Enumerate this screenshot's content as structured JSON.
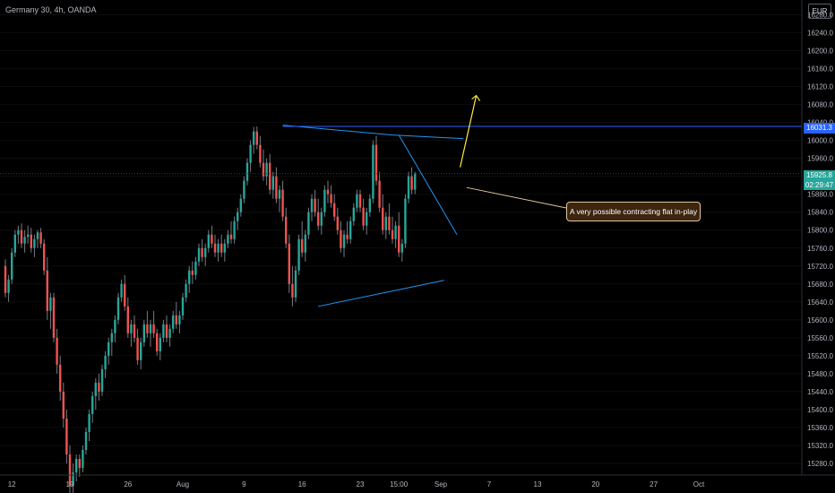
{
  "header": {
    "title": "Germany 30, 4h, OANDA",
    "currency": "EUR"
  },
  "annotation": {
    "text": "A very possible contracting flat in-play"
  },
  "price_tags": {
    "level": "16031.3",
    "last": "15925.8",
    "countdown": "02:29:47"
  },
  "colors": {
    "up": "#26a69a",
    "down": "#ef5350",
    "wick": "#787b86",
    "trendline": "#2196f3",
    "arrow": "#ffeb3b",
    "background": "#000000"
  },
  "chart_data": {
    "type": "candlestick",
    "title": "",
    "xlabel": "",
    "ylabel": "",
    "ylim": [
      15260,
      16290
    ],
    "y_ticks": [
      16280.0,
      16240.0,
      16200.0,
      16160.0,
      16120.0,
      16080.0,
      16040.0,
      16000.0,
      15960.0,
      15920.0,
      15880.0,
      15840.0,
      15800.0,
      15760.0,
      15720.0,
      15680.0,
      15640.0,
      15600.0,
      15560.0,
      15520.0,
      15480.0,
      15440.0,
      15400.0,
      15360.0,
      15320.0,
      15280.0
    ],
    "x_ticks": [
      {
        "label": "12",
        "index": 2
      },
      {
        "label": "19",
        "index": 20
      },
      {
        "label": "26",
        "index": 38
      },
      {
        "label": "Aug",
        "index": 55
      },
      {
        "label": "9",
        "index": 74
      },
      {
        "label": "16",
        "index": 92
      },
      {
        "label": "23",
        "index": 110
      },
      {
        "label": "15:00",
        "index": 122
      },
      {
        "label": "Sep",
        "index": 135
      },
      {
        "label": "7",
        "index": 150
      },
      {
        "label": "13",
        "index": 165
      },
      {
        "label": "20",
        "index": 183
      },
      {
        "label": "27",
        "index": 201
      },
      {
        "label": "Oct",
        "index": 215
      }
    ],
    "candles": [
      [
        15720,
        15735,
        15650,
        15660
      ],
      [
        15660,
        15700,
        15640,
        15690
      ],
      [
        15690,
        15760,
        15680,
        15750
      ],
      [
        15750,
        15800,
        15740,
        15790
      ],
      [
        15790,
        15810,
        15770,
        15800
      ],
      [
        15800,
        15815,
        15760,
        15770
      ],
      [
        15770,
        15800,
        15750,
        15785
      ],
      [
        15785,
        15810,
        15770,
        15790
      ],
      [
        15790,
        15805,
        15750,
        15760
      ],
      [
        15760,
        15790,
        15740,
        15780
      ],
      [
        15780,
        15800,
        15760,
        15795
      ],
      [
        15795,
        15805,
        15760,
        15770
      ],
      [
        15770,
        15780,
        15700,
        15710
      ],
      [
        15710,
        15740,
        15600,
        15620
      ],
      [
        15620,
        15660,
        15580,
        15650
      ],
      [
        15650,
        15660,
        15550,
        15560
      ],
      [
        15560,
        15580,
        15480,
        15500
      ],
      [
        15500,
        15520,
        15420,
        15440
      ],
      [
        15440,
        15460,
        15360,
        15380
      ],
      [
        15380,
        15400,
        15280,
        15300
      ],
      [
        15300,
        15320,
        15210,
        15230
      ],
      [
        15230,
        15280,
        15200,
        15260
      ],
      [
        15260,
        15300,
        15240,
        15290
      ],
      [
        15290,
        15300,
        15250,
        15270
      ],
      [
        15270,
        15320,
        15260,
        15310
      ],
      [
        15310,
        15360,
        15300,
        15350
      ],
      [
        15350,
        15400,
        15330,
        15390
      ],
      [
        15390,
        15440,
        15370,
        15430
      ],
      [
        15430,
        15470,
        15400,
        15460
      ],
      [
        15460,
        15480,
        15420,
        15440
      ],
      [
        15440,
        15500,
        15430,
        15490
      ],
      [
        15490,
        15530,
        15470,
        15520
      ],
      [
        15520,
        15560,
        15500,
        15550
      ],
      [
        15550,
        15580,
        15520,
        15570
      ],
      [
        15570,
        15610,
        15550,
        15600
      ],
      [
        15600,
        15660,
        15590,
        15650
      ],
      [
        15650,
        15690,
        15640,
        15680
      ],
      [
        15680,
        15700,
        15620,
        15630
      ],
      [
        15630,
        15650,
        15560,
        15570
      ],
      [
        15570,
        15600,
        15540,
        15590
      ],
      [
        15590,
        15610,
        15550,
        15560
      ],
      [
        15560,
        15580,
        15500,
        15510
      ],
      [
        15510,
        15560,
        15490,
        15550
      ],
      [
        15550,
        15600,
        15540,
        15590
      ],
      [
        15590,
        15620,
        15560,
        15570
      ],
      [
        15570,
        15600,
        15540,
        15590
      ],
      [
        15590,
        15620,
        15560,
        15570
      ],
      [
        15570,
        15580,
        15520,
        15530
      ],
      [
        15530,
        15570,
        15510,
        15560
      ],
      [
        15560,
        15600,
        15550,
        15590
      ],
      [
        15590,
        15610,
        15550,
        15560
      ],
      [
        15560,
        15590,
        15540,
        15580
      ],
      [
        15580,
        15620,
        15570,
        15610
      ],
      [
        15610,
        15640,
        15580,
        15590
      ],
      [
        15590,
        15620,
        15570,
        15610
      ],
      [
        15610,
        15660,
        15600,
        15650
      ],
      [
        15650,
        15690,
        15640,
        15680
      ],
      [
        15680,
        15720,
        15660,
        15710
      ],
      [
        15710,
        15730,
        15680,
        15700
      ],
      [
        15700,
        15740,
        15690,
        15730
      ],
      [
        15730,
        15770,
        15720,
        15760
      ],
      [
        15760,
        15780,
        15730,
        15740
      ],
      [
        15740,
        15770,
        15720,
        15760
      ],
      [
        15760,
        15800,
        15750,
        15790
      ],
      [
        15790,
        15810,
        15760,
        15770
      ],
      [
        15770,
        15790,
        15740,
        15750
      ],
      [
        15750,
        15780,
        15730,
        15770
      ],
      [
        15770,
        15790,
        15740,
        15750
      ],
      [
        15750,
        15780,
        15730,
        15770
      ],
      [
        15770,
        15800,
        15760,
        15790
      ],
      [
        15790,
        15820,
        15770,
        15780
      ],
      [
        15780,
        15830,
        15770,
        15820
      ],
      [
        15820,
        15850,
        15800,
        15840
      ],
      [
        15840,
        15880,
        15830,
        15870
      ],
      [
        15870,
        15920,
        15860,
        15910
      ],
      [
        15910,
        15960,
        15900,
        15950
      ],
      [
        15950,
        16000,
        15930,
        15990
      ],
      [
        15990,
        16030,
        15970,
        16020
      ],
      [
        16020,
        16031,
        15980,
        15990
      ],
      [
        15990,
        16010,
        15940,
        15950
      ],
      [
        15950,
        15980,
        15910,
        15920
      ],
      [
        15920,
        15960,
        15900,
        15950
      ],
      [
        15950,
        15970,
        15880,
        15890
      ],
      [
        15890,
        15930,
        15870,
        15920
      ],
      [
        15920,
        15940,
        15860,
        15870
      ],
      [
        15870,
        15900,
        15840,
        15890
      ],
      [
        15890,
        15910,
        15820,
        15830
      ],
      [
        15830,
        15850,
        15760,
        15770
      ],
      [
        15770,
        15790,
        15660,
        15680
      ],
      [
        15680,
        15720,
        15630,
        15650
      ],
      [
        15650,
        15720,
        15640,
        15710
      ],
      [
        15710,
        15790,
        15700,
        15780
      ],
      [
        15780,
        15820,
        15740,
        15750
      ],
      [
        15750,
        15800,
        15730,
        15790
      ],
      [
        15790,
        15850,
        15780,
        15840
      ],
      [
        15840,
        15880,
        15820,
        15870
      ],
      [
        15870,
        15890,
        15830,
        15840
      ],
      [
        15840,
        15870,
        15800,
        15810
      ],
      [
        15810,
        15850,
        15790,
        15840
      ],
      [
        15840,
        15900,
        15830,
        15890
      ],
      [
        15890,
        15910,
        15860,
        15880
      ],
      [
        15880,
        15900,
        15850,
        15860
      ],
      [
        15860,
        15880,
        15820,
        15830
      ],
      [
        15830,
        15850,
        15790,
        15800
      ],
      [
        15800,
        15820,
        15750,
        15760
      ],
      [
        15760,
        15800,
        15740,
        15790
      ],
      [
        15790,
        15820,
        15770,
        15780
      ],
      [
        15780,
        15830,
        15770,
        15820
      ],
      [
        15820,
        15860,
        15810,
        15850
      ],
      [
        15850,
        15890,
        15840,
        15880
      ],
      [
        15880,
        15890,
        15840,
        15850
      ],
      [
        15850,
        15870,
        15800,
        15810
      ],
      [
        15810,
        15850,
        15790,
        15840
      ],
      [
        15840,
        15880,
        15830,
        15870
      ],
      [
        15870,
        16000,
        15860,
        15990
      ],
      [
        15990,
        16010,
        15900,
        15910
      ],
      [
        15910,
        15930,
        15840,
        15850
      ],
      [
        15850,
        15880,
        15790,
        15800
      ],
      [
        15800,
        15840,
        15780,
        15830
      ],
      [
        15830,
        15860,
        15790,
        15800
      ],
      [
        15800,
        15830,
        15770,
        15780
      ],
      [
        15780,
        15820,
        15760,
        15810
      ],
      [
        15810,
        15840,
        15740,
        15750
      ],
      [
        15750,
        15780,
        15730,
        15770
      ],
      [
        15770,
        15880,
        15760,
        15870
      ],
      [
        15870,
        15930,
        15860,
        15920
      ],
      [
        15920,
        15940,
        15880,
        15890
      ],
      [
        15890,
        15930,
        15880,
        15926
      ]
    ],
    "trendlines": [
      {
        "name": "",
        "points": [
          [
            86,
            16034
          ],
          [
            120,
            16012
          ],
          [
            142,
            16004
          ]
        ]
      },
      {
        "name": "",
        "points": [
          [
            97,
            15630
          ],
          [
            136,
            15688
          ]
        ]
      },
      {
        "name": "",
        "points": [
          [
            122,
            16012
          ],
          [
            140,
            15790
          ]
        ]
      }
    ],
    "levels": [
      16031.3,
      15925.8
    ]
  }
}
